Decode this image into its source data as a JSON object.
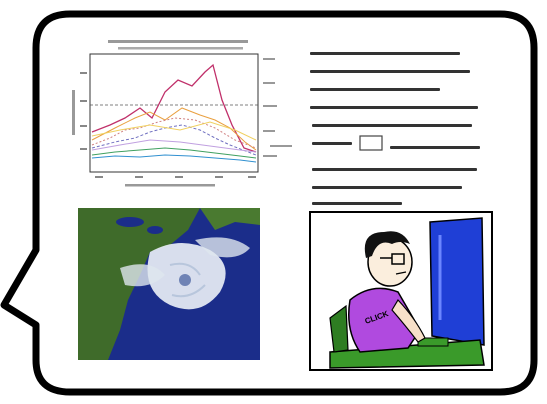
{
  "colors": {
    "bubble_fill": "#ffffff",
    "bubble_stroke": "#000000",
    "monitor_blue": "#1f3fd6",
    "desk_green": "#3a9a2a",
    "shirt_purple": "#b04adf",
    "ocean_blue": "#1b2d8a",
    "land_green": "#3f6b2a",
    "storm_white": "#e8eef5"
  },
  "icons": {
    "bubble": "speech-bubble-icon",
    "chart": "line-chart-figure",
    "equations": "math-equations-text",
    "hurricane": "hurricane-satellite-image",
    "cartoon": "person-at-computer-cartoon"
  },
  "cartoon": {
    "click_label": "CLICK"
  }
}
